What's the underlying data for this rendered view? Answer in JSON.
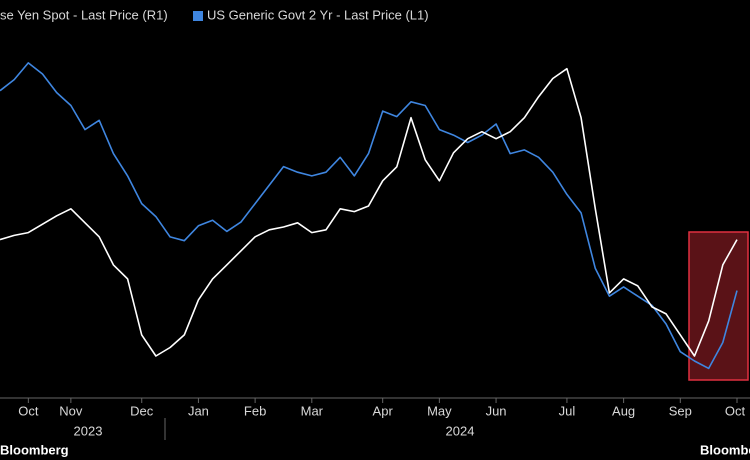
{
  "chart_data": {
    "type": "line",
    "legend": [
      "se Yen Spot - Last Price (R1)",
      "US Generic Govt 2 Yr - Last Price (L1)"
    ],
    "categories": [
      null,
      null,
      "Oct",
      null,
      null,
      "Nov",
      null,
      null,
      null,
      null,
      "Dec",
      null,
      null,
      null,
      "Jan",
      null,
      null,
      null,
      "Feb",
      null,
      null,
      null,
      "Mar",
      null,
      null,
      null,
      null,
      "Apr",
      null,
      null,
      null,
      "May",
      null,
      null,
      null,
      "Jun",
      null,
      null,
      null,
      null,
      "Jul",
      null,
      null,
      null,
      "Aug",
      null,
      null,
      null,
      "Sep",
      null,
      null,
      null,
      "Oct"
    ],
    "year_labels": [
      "2023",
      "2024"
    ],
    "series": [
      {
        "name": "se Yen Spot - Last Price (R1)",
        "color": "#ffffff",
        "axis": "y2",
        "values": [
          149.3,
          149.6,
          149.8,
          150.4,
          151.0,
          151.5,
          150.5,
          149.5,
          147.5,
          146.5,
          142.5,
          141.0,
          141.6,
          142.5,
          145.0,
          146.5,
          147.5,
          148.5,
          149.5,
          150.0,
          150.2,
          150.5,
          149.8,
          150.0,
          151.5,
          151.3,
          151.7,
          153.5,
          154.5,
          158.0,
          155.0,
          153.5,
          155.5,
          156.5,
          157.0,
          156.5,
          157.0,
          158.0,
          159.5,
          160.8,
          161.5,
          158.0,
          151.5,
          145.5,
          146.5,
          146.0,
          144.5,
          144.0,
          142.5,
          141.0,
          143.5,
          147.5,
          149.3
        ]
      },
      {
        "name": "US Generic Govt 2 Yr - Last Price (L1)",
        "color": "#3f86e0",
        "values": [
          5.06,
          5.12,
          5.21,
          5.15,
          5.05,
          4.98,
          4.85,
          4.9,
          4.72,
          4.6,
          4.45,
          4.38,
          4.27,
          4.25,
          4.33,
          4.36,
          4.3,
          4.35,
          4.45,
          4.55,
          4.65,
          4.62,
          4.6,
          4.62,
          4.7,
          4.6,
          4.72,
          4.95,
          4.92,
          5.0,
          4.98,
          4.85,
          4.82,
          4.78,
          4.82,
          4.88,
          4.72,
          4.74,
          4.7,
          4.62,
          4.5,
          4.4,
          4.1,
          3.95,
          4.0,
          3.95,
          3.9,
          3.8,
          3.65,
          3.6,
          3.56,
          3.7,
          3.98
        ]
      }
    ],
    "ylim": [
      3.4,
      5.55
    ],
    "y2lim": [
      138,
      166.4
    ],
    "footer": "Bloomberg"
  }
}
